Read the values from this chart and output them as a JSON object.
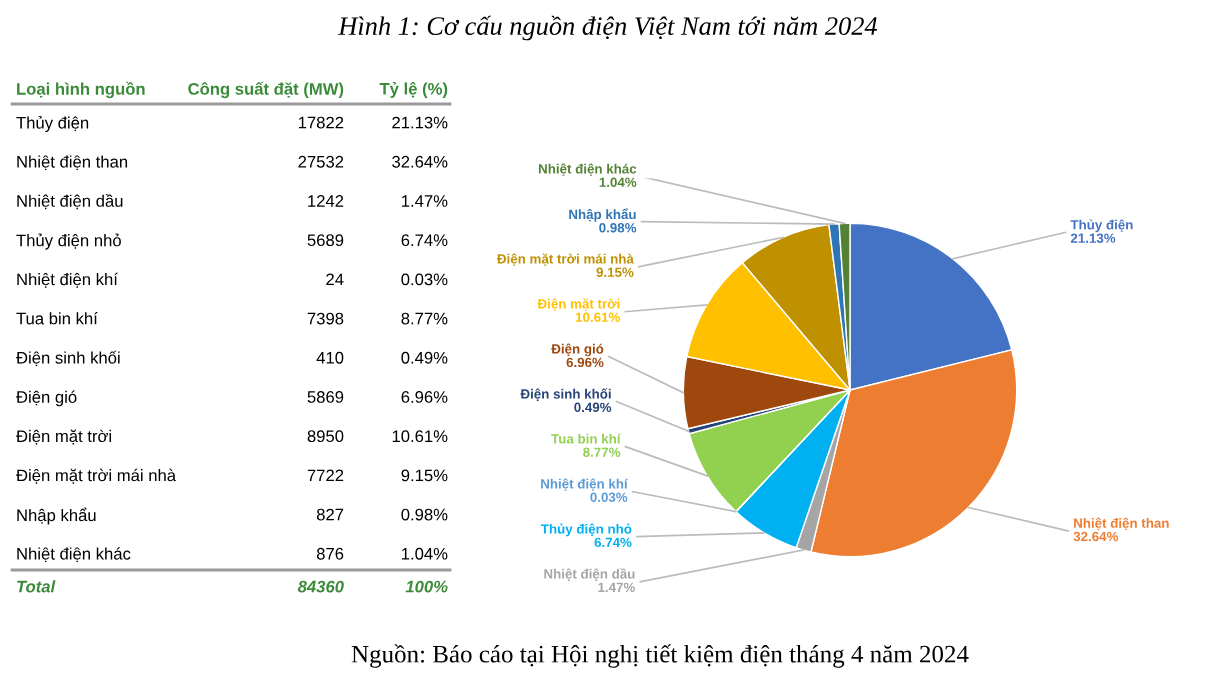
{
  "chart_data": [
    {
      "type": "other",
      "title": "Hình 1: Cơ cấu nguồn điện Việt Nam tới năm 2024",
      "annotations": [
        "Loại hình nguồn",
        "Công suất đặt (MW)",
        "Tỷ lệ (%)",
        "Thủy điện",
        "17822",
        "21.13%",
        "Nhiệt điện than",
        "27532",
        "32.64%",
        "Nhiệt điện dầu",
        "1242",
        "1.47%",
        "Thủy điện nhỏ",
        "5689",
        "6.74%",
        "Nhiệt điện khí",
        "24",
        "0.03%",
        "Tua bin khí",
        "7398",
        "8.77%",
        "Điện sinh khối",
        "410",
        "0.49%",
        "Điện gió",
        "5869",
        "6.96%",
        "Điện mặt trời",
        "8950",
        "10.61%",
        "Điện mặt trời mái nhà",
        "7722",
        "9.15%",
        "Nhập khẩu",
        "827",
        "0.98%",
        "Nhiệt điện khác",
        "876",
        "1.04%",
        "Total",
        "84360",
        "100%"
      ]
    },
    {
      "type": "pie",
      "categories": [
        "Thủy điện",
        "Nhiệt điện than",
        "Nhiệt điện dầu",
        "Thủy điện nhỏ",
        "Nhiệt điện khí",
        "Tua bin khí",
        "Điện sinh khối",
        "Điện gió",
        "Điện mặt trời",
        "Điện mặt trời mái nhà",
        "Nhập khẩu",
        "Nhiệt điện khác"
      ],
      "values": [
        21.13,
        32.64,
        1.47,
        6.74,
        0.03,
        8.77,
        0.49,
        6.96,
        10.61,
        9.15,
        0.98,
        1.04
      ],
      "value_labels": [
        "21.13%",
        "32.64%",
        "1.47%",
        "6.74%",
        "0.03%",
        "8.77%",
        "0.49%",
        "6.96%",
        "10.61%",
        "9.15%",
        "0.98%",
        "1.04%"
      ],
      "colors": [
        "#4472c4",
        "#ed7d31",
        "#a5a5a5",
        "#00b0f0",
        "#5b9bd5",
        "#92d050",
        "#264478",
        "#9e480e",
        "#ffc000",
        "#bf9000",
        "#2e75b6",
        "#548235"
      ],
      "annotations": [
        "Nguồn: Báo cáo tại Hội nghị tiết kiệm điện tháng 4 năm 2024"
      ]
    }
  ]
}
